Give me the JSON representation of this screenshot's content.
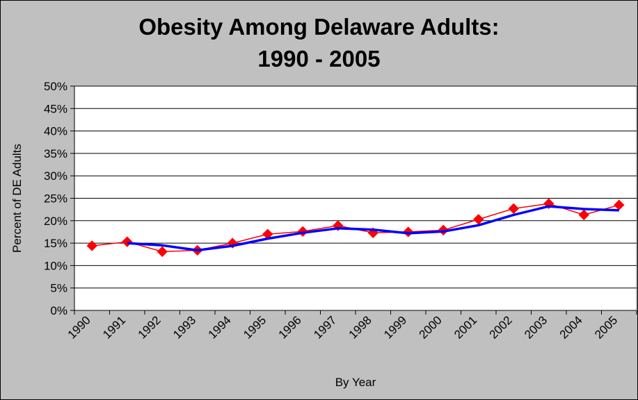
{
  "chart_data": {
    "type": "line",
    "title_line1": "Obesity Among Delaware Adults:",
    "title_line2": "1990 - 2005",
    "xlabel": "By Year",
    "ylabel": "Percent of DE Adults",
    "categories": [
      "1990",
      "1991",
      "1992",
      "1993",
      "1994",
      "1995",
      "1996",
      "1997",
      "1998",
      "1999",
      "2000",
      "2001",
      "2002",
      "2003",
      "2004",
      "2005"
    ],
    "ylim": [
      0,
      50
    ],
    "y_ticks": [
      "0%",
      "5%",
      "10%",
      "15%",
      "20%",
      "25%",
      "30%",
      "35%",
      "40%",
      "45%",
      "50%"
    ],
    "y_tick_values": [
      0,
      5,
      10,
      15,
      20,
      25,
      30,
      35,
      40,
      45,
      50
    ],
    "grid": true,
    "series": [
      {
        "values": [
          14.4,
          15.3,
          13.1,
          13.4,
          15.0,
          17.0,
          17.6,
          18.9,
          17.3,
          17.5,
          17.9,
          20.3,
          22.7,
          23.8,
          21.3,
          23.5
        ],
        "color": "#ff0000",
        "marker": "diamond"
      },
      {
        "values": [
          null,
          15.0,
          14.5,
          13.4,
          14.4,
          16.0,
          17.3,
          18.3,
          18.0,
          17.2,
          17.6,
          19.0,
          21.3,
          23.2,
          22.6,
          22.3
        ],
        "color": "#0000ff",
        "marker": "none"
      }
    ]
  }
}
